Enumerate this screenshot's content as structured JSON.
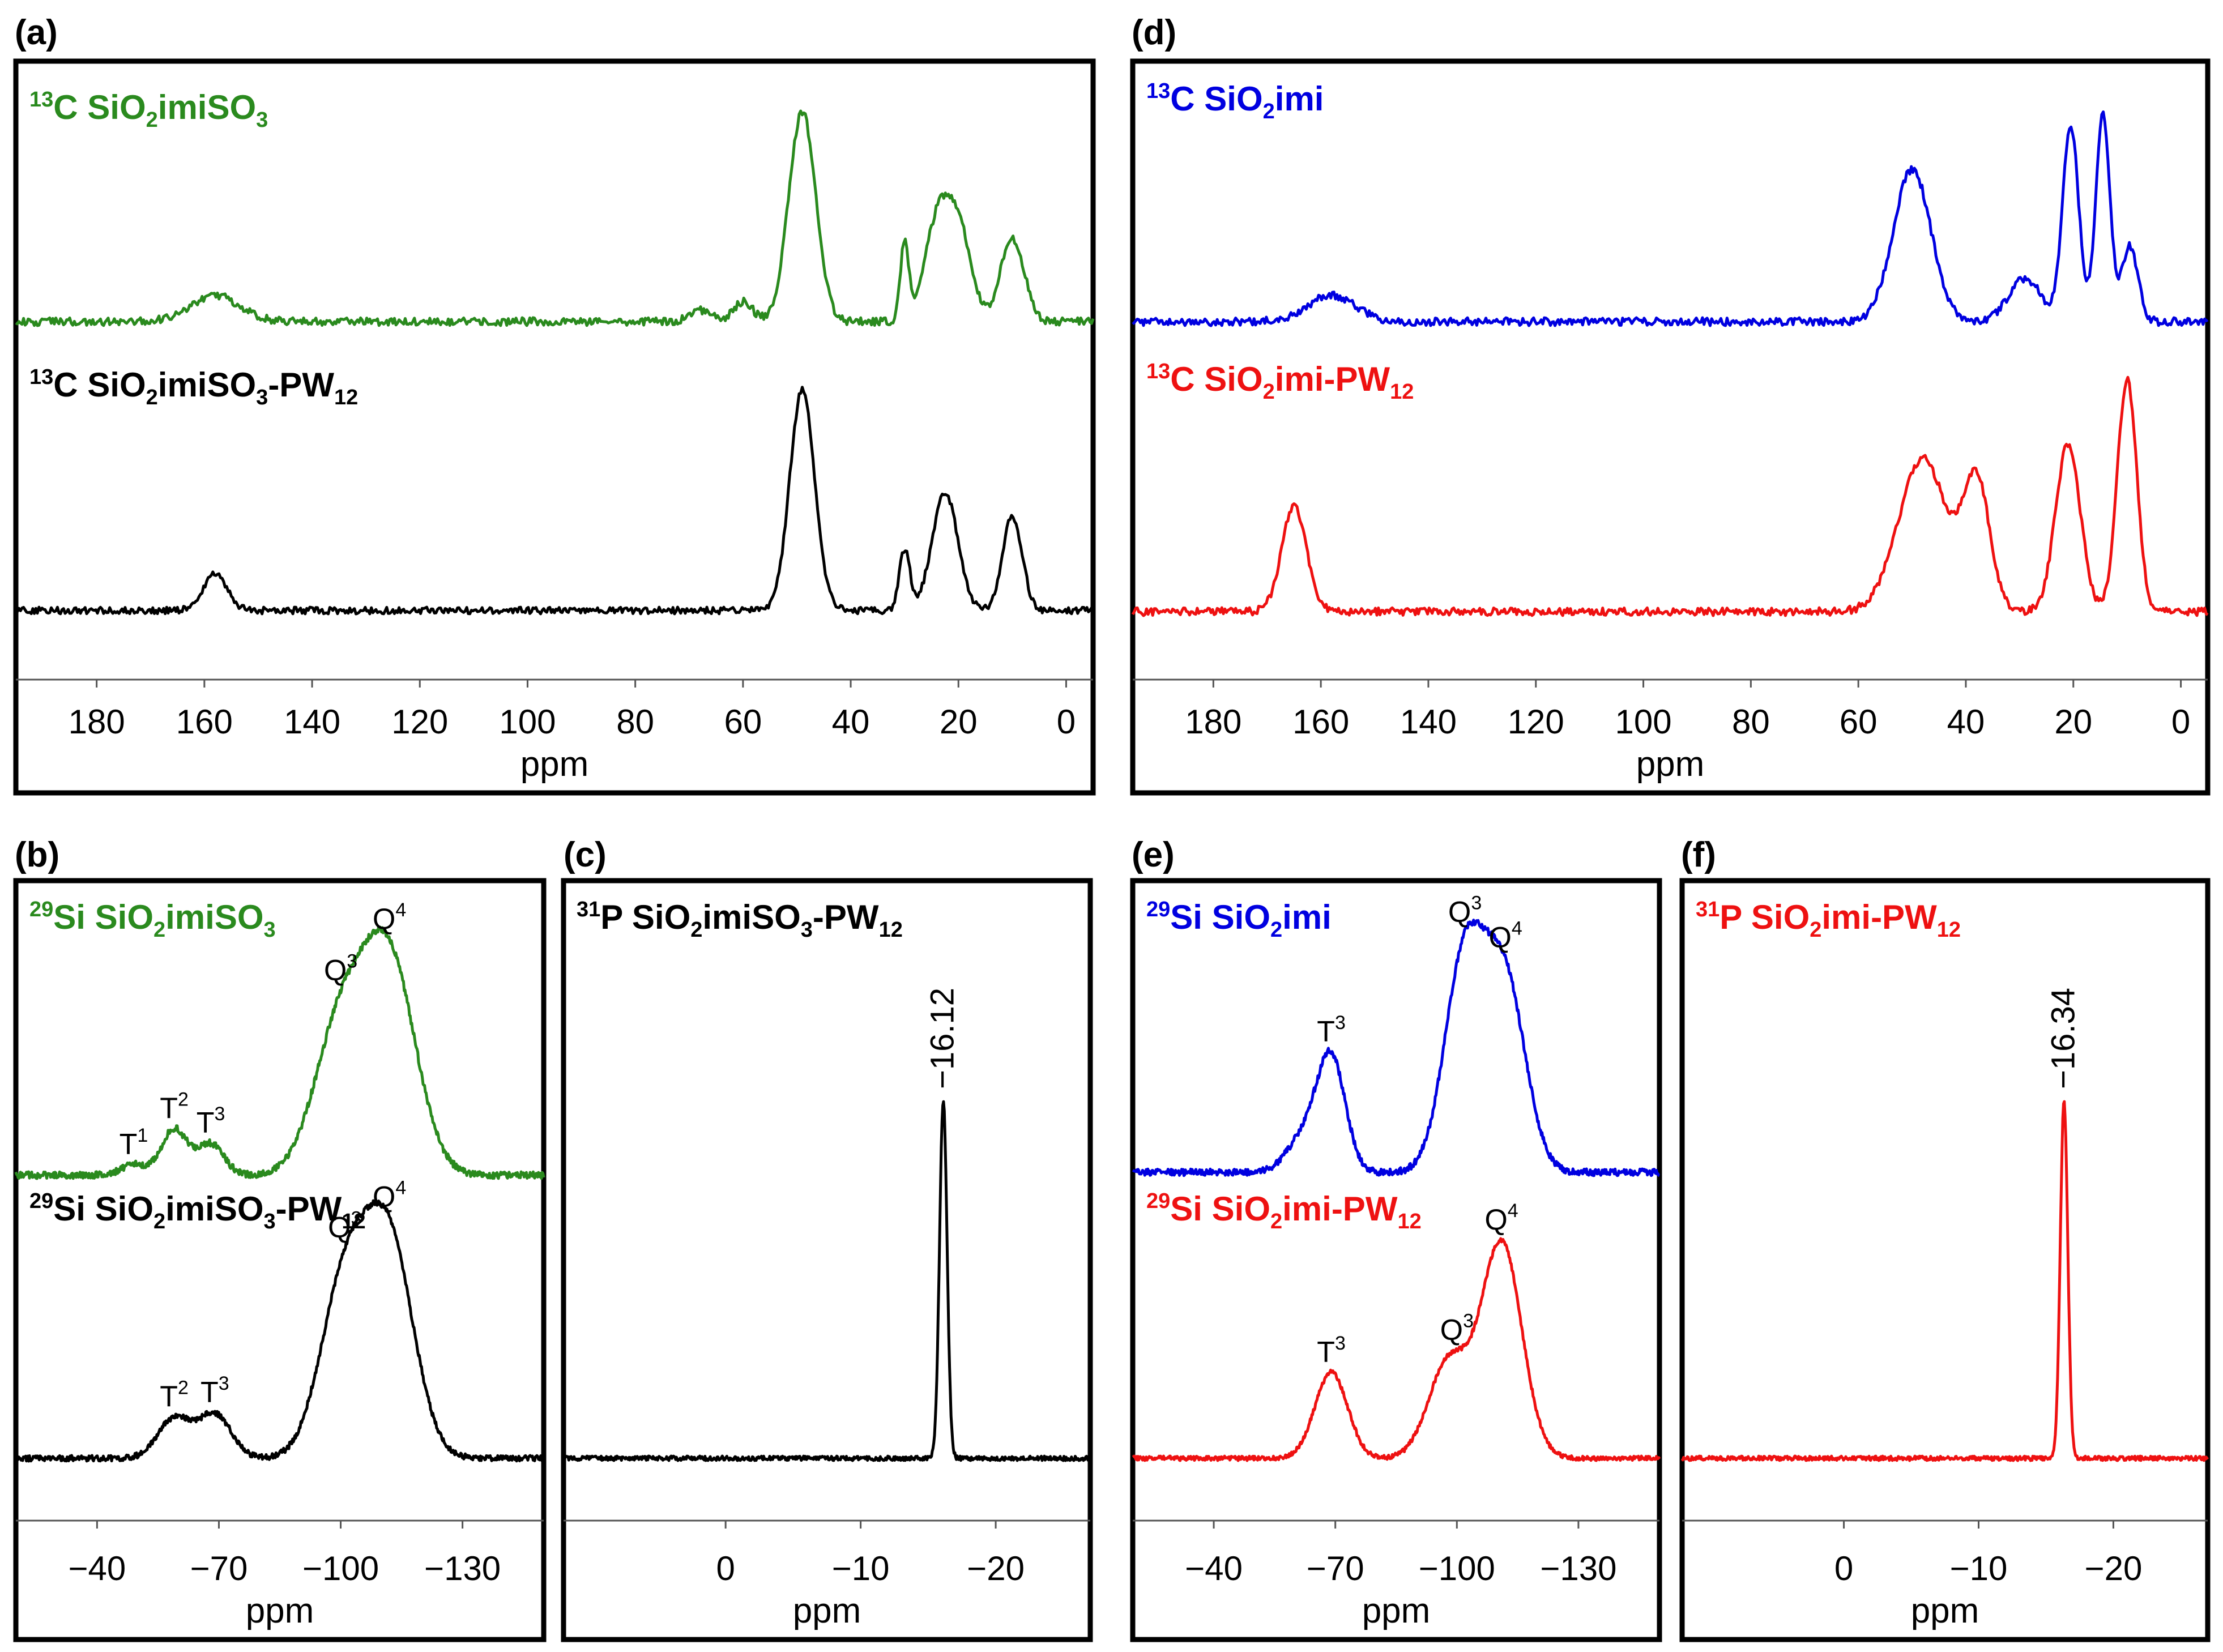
{
  "figure": {
    "colors": {
      "green": "#2a8a1e",
      "black": "#000000",
      "blue": "#0000e0",
      "red": "#ee1111"
    }
  },
  "chart_data": [
    {
      "id": "a",
      "panel_label": "(a)",
      "type": "line",
      "xlabel": "ppm",
      "xlim": [
        195,
        -5
      ],
      "reversed_x": true,
      "ticks": [
        180,
        160,
        140,
        120,
        100,
        80,
        60,
        40,
        20,
        0
      ],
      "tick_labels": [
        "180",
        "160",
        "140",
        "120",
        "100",
        "80",
        "60",
        "40",
        "20",
        "0"
      ],
      "series": [
        {
          "name": "13C SiO2imiSO3",
          "title": {
            "sup": "13",
            "parts": [
              [
                "C SiO",
                ""
              ],
              [
                "2",
                "sub"
              ],
              [
                "imiSO",
                ""
              ],
              [
                "3",
                "sub"
              ]
            ]
          },
          "color": "green",
          "peaks": [
            [
              158,
              0.12,
              4.5
            ],
            [
              68,
              0.05,
              2
            ],
            [
              60,
              0.09,
              1.8
            ],
            [
              49,
              0.95,
              2.5
            ],
            [
              30,
              0.35,
              0.8
            ],
            [
              24,
              0.42,
              2.4
            ],
            [
              20,
              0.4,
              2.4
            ],
            [
              10,
              0.38,
              2.2
            ]
          ]
        },
        {
          "name": "13C SiO2imiSO3-PW12",
          "title": {
            "sup": "13",
            "parts": [
              [
                "C SiO",
                ""
              ],
              [
                "2",
                "sub"
              ],
              [
                "imiSO",
                ""
              ],
              [
                "3",
                "sub"
              ],
              [
                "-PW",
                ""
              ],
              [
                "12",
                "sub"
              ]
            ]
          },
          "color": "black",
          "peaks": [
            [
              158,
              0.17,
              2.2
            ],
            [
              49,
              1.0,
              2.3
            ],
            [
              30,
              0.27,
              1.0
            ],
            [
              22.5,
              0.53,
              2.4
            ],
            [
              10,
              0.43,
              1.8
            ]
          ]
        }
      ]
    },
    {
      "id": "b",
      "panel_label": "(b)",
      "type": "line",
      "xlabel": "ppm",
      "xlim": [
        -20,
        -150
      ],
      "reversed_x": true,
      "ticks": [
        -40,
        -70,
        -100,
        -130
      ],
      "tick_labels": [
        "−40",
        "−70",
        "−100",
        "−130"
      ],
      "series": [
        {
          "name": "29Si SiO2imiSO3",
          "title": {
            "sup": "29",
            "parts": [
              [
                "Si SiO",
                ""
              ],
              [
                "2",
                "sub"
              ],
              [
                "imiSO",
                ""
              ],
              [
                "3",
                "sub"
              ]
            ]
          },
          "color": "green",
          "peaks": [
            [
              -49,
              0.05,
              3
            ],
            [
              -59,
              0.22,
              3.2
            ],
            [
              -68,
              0.15,
              3.2
            ],
            [
              -100,
              0.7,
              6.5
            ],
            [
              -112,
              1.0,
              6.5
            ]
          ],
          "annotations": [
            {
              "label": "T",
              "sup": "1",
              "ppm": -49
            },
            {
              "label": "T",
              "sup": "2",
              "ppm": -59
            },
            {
              "label": "T",
              "sup": "3",
              "ppm": -68
            },
            {
              "label": "Q",
              "sup": "3",
              "ppm": -100
            },
            {
              "label": "Q",
              "sup": "4",
              "ppm": -112
            }
          ]
        },
        {
          "name": "29Si SiO2imiSO3-PW12",
          "title": {
            "sup": "29",
            "parts": [
              [
                "Si SiO",
                ""
              ],
              [
                "2",
                "sub"
              ],
              [
                "imiSO",
                ""
              ],
              [
                "3",
                "sub"
              ],
              [
                "-PW",
                ""
              ],
              [
                "12",
                "sub"
              ]
            ]
          },
          "color": "black",
          "peaks": [
            [
              -59,
              0.19,
              4
            ],
            [
              -69,
              0.21,
              4
            ],
            [
              -101,
              0.82,
              6
            ],
            [
              -112,
              1.0,
              6
            ]
          ],
          "annotations": [
            {
              "label": "T",
              "sup": "2",
              "ppm": -59
            },
            {
              "label": "T",
              "sup": "3",
              "ppm": -69
            },
            {
              "label": "Q",
              "sup": "3",
              "ppm": -101
            },
            {
              "label": "Q",
              "sup": "4",
              "ppm": -112
            }
          ]
        }
      ]
    },
    {
      "id": "c",
      "panel_label": "(c)",
      "type": "line",
      "xlabel": "ppm",
      "xlim": [
        12,
        -27
      ],
      "reversed_x": true,
      "ticks": [
        0,
        -10,
        -20
      ],
      "tick_labels": [
        "0",
        "−10",
        "−20"
      ],
      "series": [
        {
          "name": "31P SiO2imiSO3-PW12",
          "title": {
            "sup": "31",
            "parts": [
              [
                "P SiO",
                ""
              ],
              [
                "2",
                "sub"
              ],
              [
                "imiSO",
                ""
              ],
              [
                "3",
                "sub"
              ],
              [
                "-PW",
                ""
              ],
              [
                "12",
                "sub"
              ]
            ]
          },
          "color": "black",
          "peaks": [
            [
              -16.12,
              1.0,
              0.28
            ]
          ],
          "peak_label": "−16.12",
          "peak_ppm": -16.12
        }
      ]
    },
    {
      "id": "d",
      "panel_label": "(d)",
      "type": "line",
      "xlabel": "ppm",
      "xlim": [
        195,
        -5
      ],
      "reversed_x": true,
      "ticks": [
        180,
        160,
        140,
        120,
        100,
        80,
        60,
        40,
        20,
        0
      ],
      "tick_labels": [
        "180",
        "160",
        "140",
        "120",
        "100",
        "80",
        "60",
        "40",
        "20",
        "0"
      ],
      "series": [
        {
          "name": "13C SiO2imi",
          "title": {
            "sup": "13",
            "parts": [
              [
                "C SiO",
                ""
              ],
              [
                "2",
                "sub"
              ],
              [
                "imi",
                ""
              ]
            ]
          },
          "color": "blue",
          "peaks": [
            [
              158,
              0.12,
              4.5
            ],
            [
              50,
              0.7,
              3.5
            ],
            [
              29,
              0.2,
              3
            ],
            [
              20.5,
              0.9,
              1.5
            ],
            [
              14.5,
              0.95,
              1.3
            ],
            [
              9.5,
              0.35,
              1.5
            ]
          ]
        },
        {
          "name": "13C SiO2imi-PW12",
          "title": {
            "sup": "13",
            "parts": [
              [
                "C SiO",
                ""
              ],
              [
                "2",
                "sub"
              ],
              [
                "imi-PW",
                ""
              ],
              [
                "12",
                "sub"
              ]
            ]
          },
          "color": "red",
          "peaks": [
            [
              165,
              0.45,
              2.3
            ],
            [
              48,
              0.66,
              4.5
            ],
            [
              38,
              0.55,
              2.5
            ],
            [
              21,
              0.72,
              2.3
            ],
            [
              10,
              1.0,
              1.8
            ]
          ]
        }
      ]
    },
    {
      "id": "e",
      "panel_label": "(e)",
      "type": "line",
      "xlabel": "ppm",
      "xlim": [
        -20,
        -150
      ],
      "reversed_x": true,
      "ticks": [
        -40,
        -70,
        -100,
        -130
      ],
      "tick_labels": [
        "−40",
        "−70",
        "−100",
        "−130"
      ],
      "series": [
        {
          "name": "29Si SiO2imi",
          "title": {
            "sup": "29",
            "parts": [
              [
                "Si SiO",
                ""
              ],
              [
                "2",
                "sub"
              ],
              [
                "imi",
                ""
              ]
            ]
          },
          "color": "blue",
          "peaks": [
            [
              -62,
              0.15,
              4
            ],
            [
              -69,
              0.5,
              3.5
            ],
            [
              -102,
              0.95,
              5
            ],
            [
              -112,
              0.82,
              5
            ]
          ],
          "annotations": [
            {
              "label": "T",
              "sup": "3",
              "ppm": -69
            },
            {
              "label": "Q",
              "sup": "3",
              "ppm": -102
            },
            {
              "label": "Q",
              "sup": "4",
              "ppm": -112
            }
          ]
        },
        {
          "name": "29Si SiO2imi-PW12",
          "title": {
            "sup": "29",
            "parts": [
              [
                "Si SiO",
                ""
              ],
              [
                "2",
                "sub"
              ],
              [
                "imi-PW",
                ""
              ],
              [
                "12",
                "sub"
              ]
            ]
          },
          "color": "red",
          "peaks": [
            [
              -69,
              0.4,
              4
            ],
            [
              -98,
              0.45,
              5
            ],
            [
              -111,
              1.0,
              5
            ]
          ],
          "annotations": [
            {
              "label": "T",
              "sup": "3",
              "ppm": -69
            },
            {
              "label": "Q",
              "sup": "3",
              "ppm": -100
            },
            {
              "label": "Q",
              "sup": "4",
              "ppm": -111
            }
          ]
        }
      ]
    },
    {
      "id": "f",
      "panel_label": "(f)",
      "type": "line",
      "xlabel": "ppm",
      "xlim": [
        12,
        -27
      ],
      "reversed_x": true,
      "ticks": [
        0,
        -10,
        -20
      ],
      "tick_labels": [
        "0",
        "−10",
        "−20"
      ],
      "series": [
        {
          "name": "31P SiO2imi-PW12",
          "title": {
            "sup": "31",
            "parts": [
              [
                "P SiO",
                ""
              ],
              [
                "2",
                "sub"
              ],
              [
                "imi-PW",
                ""
              ],
              [
                "12",
                "sub"
              ]
            ]
          },
          "color": "red",
          "peaks": [
            [
              -16.34,
              1.0,
              0.28
            ]
          ],
          "peak_label": "−16.34",
          "peak_ppm": -16.34
        }
      ]
    }
  ]
}
